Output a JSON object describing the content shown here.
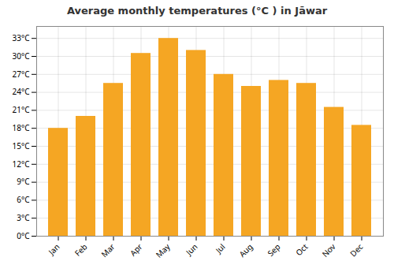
{
  "chart_data": {
    "type": "bar",
    "title": "Average monthly temperatures (°C ) in Jāwar",
    "categories": [
      "Jan",
      "Feb",
      "Mar",
      "Apr",
      "May",
      "Jun",
      "Jul",
      "Aug",
      "Sep",
      "Oct",
      "Nov",
      "Dec"
    ],
    "values": [
      18,
      20,
      25.5,
      30.5,
      33,
      31,
      27,
      25,
      26,
      25.5,
      21.5,
      18.5
    ],
    "color": "#F5A623",
    "ylim": [
      0,
      35
    ],
    "yticks": [
      {
        "value": 0,
        "label": "0°C"
      },
      {
        "value": 3,
        "label": "3°C"
      },
      {
        "value": 6,
        "label": "6°C"
      },
      {
        "value": 9,
        "label": "9°C"
      },
      {
        "value": 12,
        "label": "12°C"
      },
      {
        "value": 15,
        "label": "15°C"
      },
      {
        "value": 18,
        "label": "18°C"
      },
      {
        "value": 21,
        "label": "21°C"
      },
      {
        "value": 24,
        "label": "24°C"
      },
      {
        "value": 27,
        "label": "27°C"
      },
      {
        "value": 30,
        "label": "30°C"
      },
      {
        "value": 33,
        "label": "33°C"
      }
    ],
    "grid": true
  }
}
